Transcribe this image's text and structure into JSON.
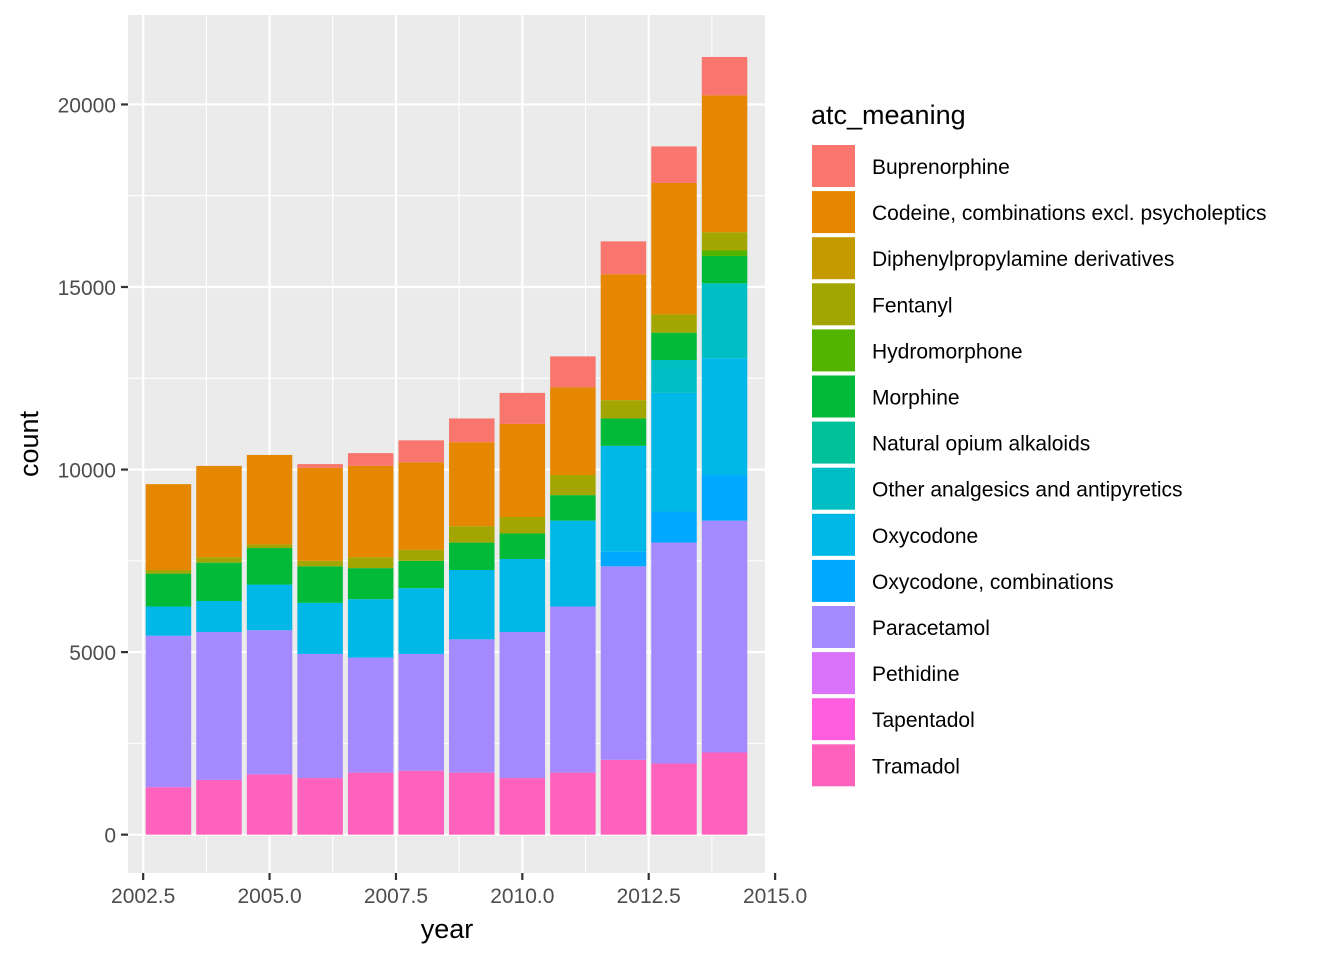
{
  "chart_data": {
    "type": "bar",
    "stacked": true,
    "title": "",
    "xlabel": "year",
    "ylabel": "count",
    "xlim": [
      2002.2,
      2014.8
    ],
    "ylim": [
      -1050,
      22450
    ],
    "x_ticks": [
      "2002.5",
      "2005.0",
      "2007.5",
      "2010.0",
      "2012.5",
      "2015.0"
    ],
    "y_ticks": [
      "0",
      "5000",
      "10000",
      "15000",
      "20000"
    ],
    "grid": true,
    "legend_position": "right",
    "legend_title": "atc_meaning",
    "x": [
      2003,
      2004,
      2005,
      2006,
      2007,
      2008,
      2009,
      2010,
      2011,
      2012,
      2013,
      2014
    ],
    "series": [
      {
        "name": "Tramadol",
        "color": "#FF62BC",
        "values": [
          1300,
          1500,
          1650,
          1550,
          1700,
          1750,
          1700,
          1550,
          1700,
          2050,
          1950,
          2250
        ]
      },
      {
        "name": "Tapentadol",
        "color": "#FF5EE0",
        "values": [
          0,
          0,
          0,
          0,
          0,
          0,
          0,
          0,
          0,
          0,
          0,
          0
        ]
      },
      {
        "name": "Pethidine",
        "color": "#DB72FB",
        "values": [
          0,
          0,
          0,
          0,
          0,
          0,
          0,
          0,
          0,
          0,
          0,
          0
        ]
      },
      {
        "name": "Paracetamol",
        "color": "#A58AFF",
        "values": [
          4150,
          4050,
          3950,
          3400,
          3150,
          3200,
          3650,
          4000,
          4550,
          5300,
          6050,
          6350
        ]
      },
      {
        "name": "Oxycodone, combinations",
        "color": "#00A9FF",
        "values": [
          0,
          0,
          0,
          0,
          0,
          0,
          0,
          0,
          0,
          400,
          850,
          1250
        ]
      },
      {
        "name": "Oxycodone",
        "color": "#00B8E7",
        "values": [
          800,
          850,
          1250,
          1400,
          1600,
          1800,
          1900,
          2000,
          2350,
          2900,
          3250,
          3200
        ]
      },
      {
        "name": "Other analgesics and antipyretics",
        "color": "#00BFC4",
        "values": [
          0,
          0,
          0,
          0,
          0,
          0,
          0,
          0,
          0,
          0,
          900,
          2050
        ]
      },
      {
        "name": "Natural opium alkaloids",
        "color": "#00C19A",
        "values": [
          0,
          0,
          0,
          0,
          0,
          0,
          0,
          0,
          0,
          0,
          0,
          0
        ]
      },
      {
        "name": "Morphine",
        "color": "#00BA38",
        "values": [
          900,
          1050,
          1000,
          1000,
          850,
          750,
          750,
          700,
          700,
          750,
          750,
          750
        ]
      },
      {
        "name": "Hydromorphone",
        "color": "#53B400",
        "values": [
          0,
          0,
          0,
          0,
          0,
          0,
          0,
          0,
          0,
          0,
          0,
          150
        ]
      },
      {
        "name": "Fentanyl",
        "color": "#A3A500",
        "values": [
          100,
          150,
          100,
          150,
          300,
          300,
          450,
          450,
          550,
          500,
          500,
          500
        ]
      },
      {
        "name": "Diphenylpropylamine derivatives",
        "color": "#C49A00",
        "values": [
          0,
          0,
          0,
          0,
          0,
          0,
          0,
          0,
          0,
          0,
          0,
          0
        ]
      },
      {
        "name": "Codeine, combinations excl. psycholeptics",
        "color": "#E58700",
        "values": [
          2350,
          2500,
          2450,
          2550,
          2500,
          2400,
          2300,
          2550,
          2400,
          3450,
          3600,
          3750
        ]
      },
      {
        "name": "Buprenorphine",
        "color": "#F8766D",
        "values": [
          0,
          0,
          0,
          100,
          350,
          600,
          650,
          850,
          850,
          900,
          1000,
          1050
        ]
      }
    ]
  },
  "legend_order": [
    "Buprenorphine",
    "Codeine, combinations excl. psycholeptics",
    "Diphenylpropylamine derivatives",
    "Fentanyl",
    "Hydromorphone",
    "Morphine",
    "Natural opium alkaloids",
    "Other analgesics and antipyretics",
    "Oxycodone",
    "Oxycodone, combinations",
    "Paracetamol",
    "Pethidine",
    "Tapentadol",
    "Tramadol"
  ]
}
